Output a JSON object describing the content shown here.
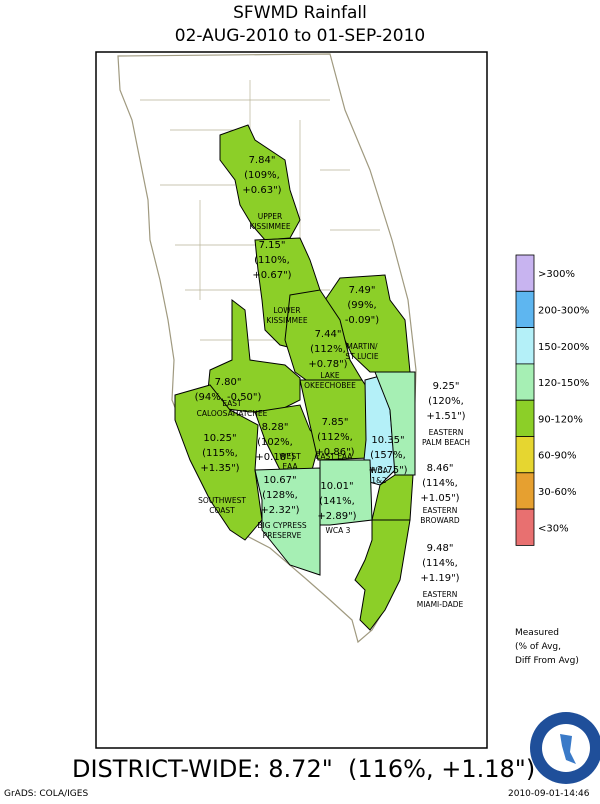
{
  "header": {
    "title": "SFWMD Rainfall",
    "subtitle": "02-AUG-2010 to 01-SEP-2010"
  },
  "regions": [
    {
      "value_lines": [
        "7.84\"",
        "(109%,",
        "+0.63\")"
      ],
      "name_lines": [
        "UPPER",
        "KISSIMMEE"
      ],
      "fill": "#8ccf28"
    },
    {
      "value_lines": [
        "7.15\"",
        "(110%,",
        "+0.67\")"
      ],
      "name_lines": [
        "LOWER",
        "KISSIMMEE"
      ],
      "fill": "#8ccf28"
    },
    {
      "value_lines": [
        "7.49\"",
        "(99%,",
        "-0.09\")"
      ],
      "name_lines": [
        "MARTIN/",
        "ST LUCIE"
      ],
      "fill": "#8ccf28"
    },
    {
      "value_lines": [
        "7.44\"",
        "(112%,",
        "+0.78\")"
      ],
      "name_lines": [
        "LAKE",
        "OKEECHOBEE"
      ],
      "fill": "#8ccf28"
    },
    {
      "value_lines": [
        "7.80\"",
        "(94%, -0.50\")"
      ],
      "name_lines": [
        "EAST",
        "CALOOSAHATCHEE"
      ],
      "fill": "#8ccf28"
    },
    {
      "value_lines": [
        "10.25\"",
        "(115%,",
        "+1.35\")"
      ],
      "name_lines": [
        "SOUTHWEST",
        "COAST"
      ],
      "fill": "#8ccf28"
    },
    {
      "value_lines": [
        "8.28\"",
        "(102%,",
        "+0.18\")"
      ],
      "name_lines": [
        "WEST",
        "EAA"
      ],
      "fill": "#8ccf28"
    },
    {
      "value_lines": [
        "7.85\"",
        "(112%,",
        "+0.86\")"
      ],
      "name_lines": [
        "EAST EAA"
      ],
      "fill": "#8ccf28"
    },
    {
      "value_lines": [
        "10.35\"",
        "(157%,",
        "+3.75\")"
      ],
      "name_lines": [
        "WCA",
        "1&2"
      ],
      "fill": "#b4f0f8"
    },
    {
      "value_lines": [
        "10.67\"",
        "(128%,",
        "+2.32\")"
      ],
      "name_lines": [
        "BIG CYPRESS",
        "PRESERVE"
      ],
      "fill": "#a6efb4"
    },
    {
      "value_lines": [
        "10.01\"",
        "(141%,",
        "+2.89\")"
      ],
      "name_lines": [
        "WCA 3"
      ],
      "fill": "#a6efb4"
    },
    {
      "value_lines": [
        "9.25\"",
        "(120%,",
        "+1.51\")"
      ],
      "name_lines": [
        "EASTERN",
        "PALM BEACH"
      ],
      "fill": "#a6efb4"
    },
    {
      "value_lines": [
        "8.46\"",
        "(114%,",
        "+1.05\")"
      ],
      "name_lines": [
        "EASTERN",
        "BROWARD"
      ],
      "fill": "#8ccf28"
    },
    {
      "value_lines": [
        "9.48\"",
        "(114%,",
        "+1.19\")"
      ],
      "name_lines": [
        "EASTERN",
        "MIAMI-DADE"
      ],
      "fill": "#8ccf28"
    }
  ],
  "legend": {
    "items": [
      {
        "label": ">300%",
        "color": "#c8b4f0"
      },
      {
        "label": "200-300%",
        "color": "#5eb6f0"
      },
      {
        "label": "150-200%",
        "color": "#b4f0f8"
      },
      {
        "label": "120-150%",
        "color": "#a6efb4"
      },
      {
        "label": "90-120%",
        "color": "#8ccf28"
      },
      {
        "label": "60-90%",
        "color": "#e6d630"
      },
      {
        "label": "30-60%",
        "color": "#e6a030"
      },
      {
        "label": "<30%",
        "color": "#e87070"
      }
    ],
    "note": [
      "Measured",
      "(% of Avg,",
      "Diff From Avg)"
    ]
  },
  "footer": {
    "summary": "DISTRICT-WIDE: 8.72\"  (116%, +1.18\")",
    "credit": "GrADS: COLA/IGES",
    "timestamp": "2010-09-01-14:46"
  }
}
